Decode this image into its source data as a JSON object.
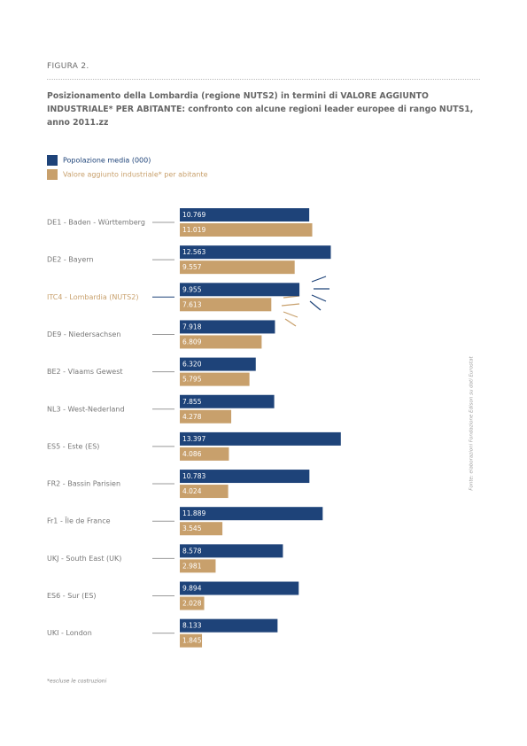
{
  "figure_label": "FIGURA 2.",
  "chart_data": {
    "type": "bar",
    "orientation": "horizontal",
    "title": "Posizionamento della Lombardia (regione NUTS2) in termini di VALORE AGGIUNTO INDUSTRIALE* PER ABITANTE: confronto con alcune regioni leader europee di rango NUTS1, anno 2011.zz",
    "categories": [
      "DE1 - Baden - Württemberg",
      "DE2 - Bayern",
      "ITC4 - Lombardia (NUTS2)",
      "DE9 - Niedersachsen",
      "BE2 - Vlaams Gewest",
      "NL3 - West-Nederland",
      "ES5 - Este (ES)",
      "FR2 - Bassin Parisien",
      "Fr1 - Île de France",
      "UKJ - South East (UK)",
      "ES6 - Sur (ES)",
      "UKI - London"
    ],
    "series": [
      {
        "name": "Popolazione media (000)",
        "color": "#1e4379",
        "values": [
          10769,
          12563,
          9955,
          7918,
          6320,
          7855,
          13397,
          10783,
          11889,
          8578,
          9894,
          8133
        ],
        "value_labels": [
          "10.769",
          "12.563",
          "9.955",
          "7.918",
          "6.320",
          "7.855",
          "13.397",
          "10.783",
          "11.889",
          "8.578",
          "9.894",
          "8.133"
        ]
      },
      {
        "name": "Valore aggiunto industriale* per abitante",
        "color": "#c8a06c",
        "values": [
          11019,
          9557,
          7613,
          6809,
          5795,
          4278,
          4086,
          4024,
          3545,
          2981,
          2028,
          1845
        ],
        "value_labels": [
          "11.019",
          "9.557",
          "7.613",
          "6.809",
          "5.795",
          "4.278",
          "4.086",
          "4.024",
          "3.545",
          "2.981",
          "2.028",
          "1.845"
        ]
      }
    ],
    "legend": "top-left",
    "footnote": "*escluse le costruzioni",
    "source": "Fonte: elaborazioni Fondazione Edison su dati Eurostat"
  }
}
